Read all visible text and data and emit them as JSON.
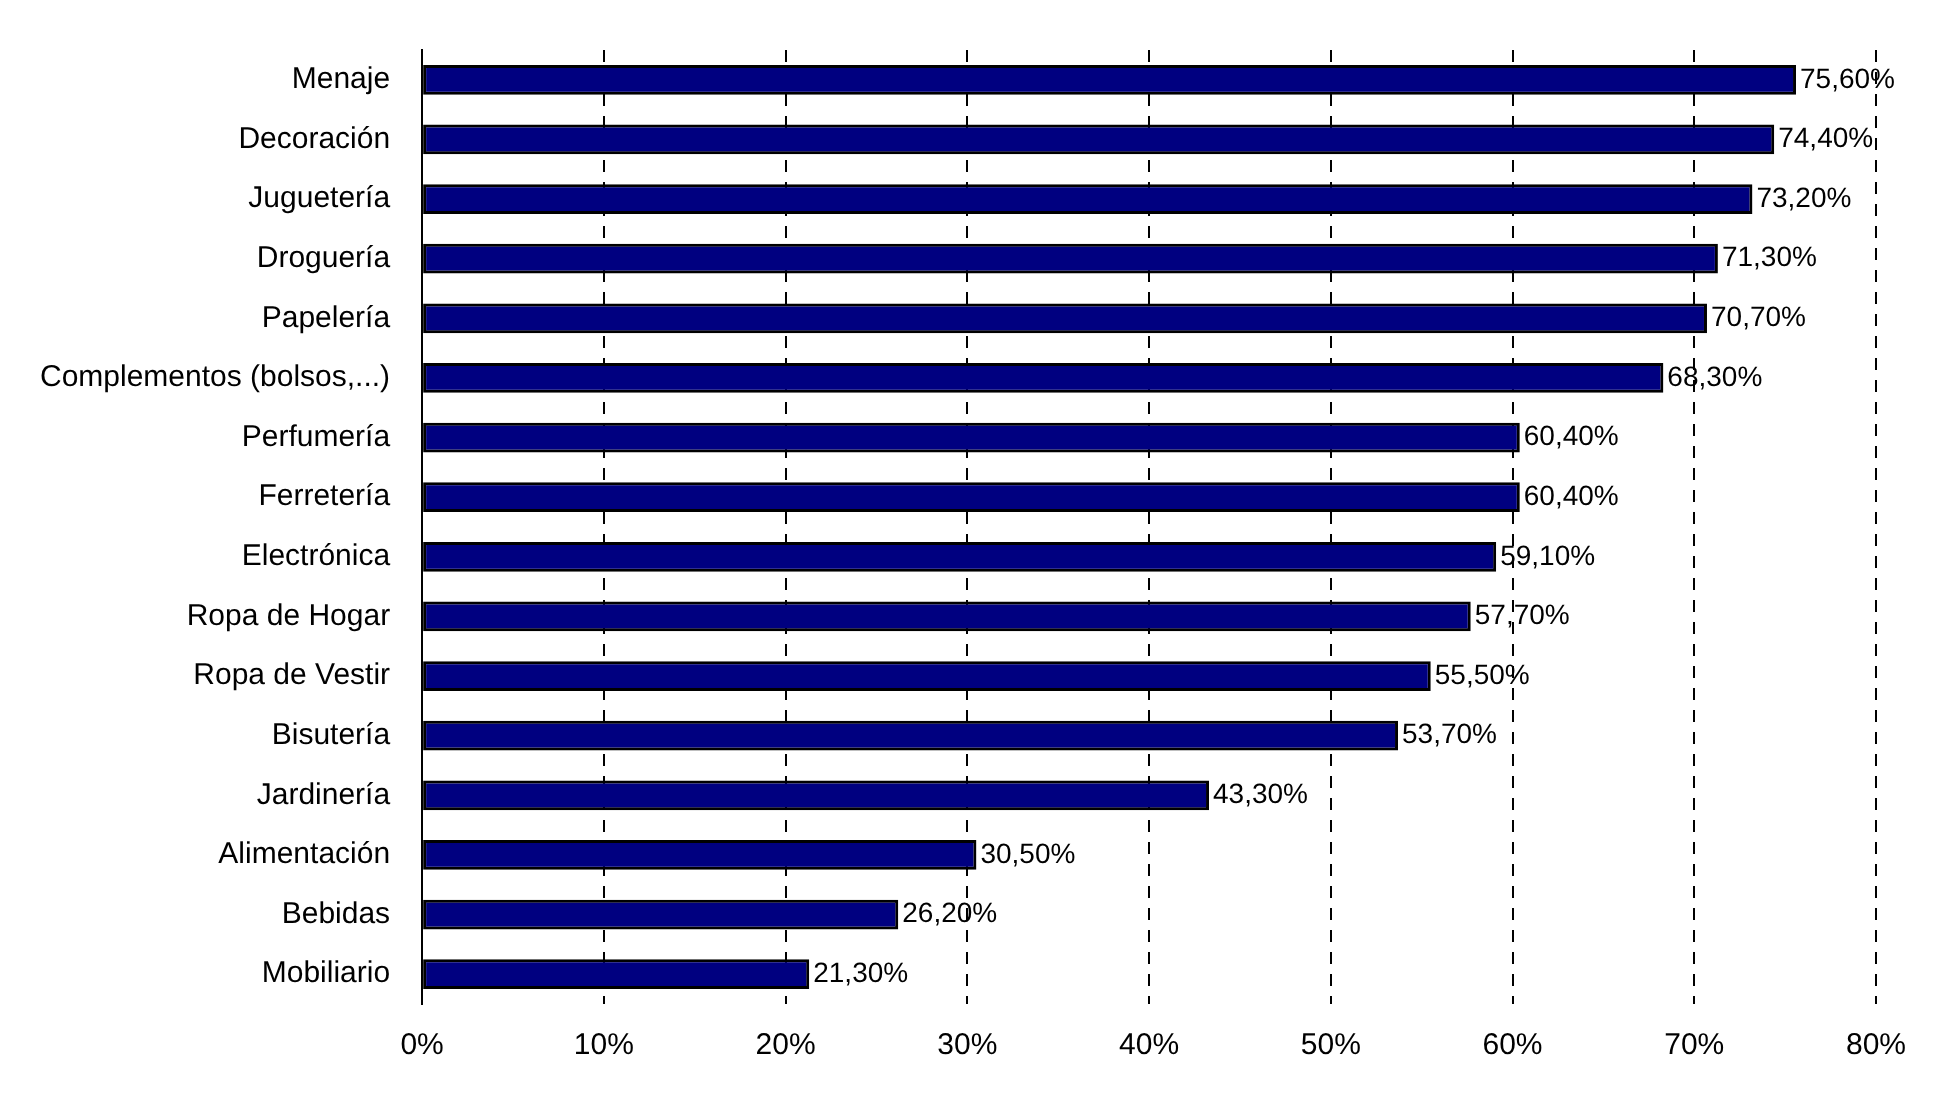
{
  "chart_data": {
    "type": "bar",
    "orientation": "horizontal",
    "categories": [
      "Menaje",
      "Decoración",
      "Juguetería",
      "Droguería",
      "Papelería",
      "Complementos (bolsos,...)",
      "Perfumería",
      "Ferretería",
      "Electrónica",
      "Ropa de Hogar",
      "Ropa de Vestir",
      "Bisutería",
      "Jardinería",
      "Alimentación",
      "Bebidas",
      "Mobiliario"
    ],
    "values": [
      75.6,
      74.4,
      73.2,
      71.3,
      70.7,
      68.3,
      60.4,
      60.4,
      59.1,
      57.7,
      55.5,
      53.7,
      43.3,
      30.5,
      26.2,
      21.3
    ],
    "value_labels": [
      "75,60%",
      "74,40%",
      "73,20%",
      "71,30%",
      "70,70%",
      "68,30%",
      "60,40%",
      "60,40%",
      "59,10%",
      "57,70%",
      "55,50%",
      "53,70%",
      "43,30%",
      "30,50%",
      "26,20%",
      "21,30%"
    ],
    "color": "#000080",
    "xlim": [
      0,
      80
    ],
    "xticks": [
      {
        "value": 0,
        "label": "0%"
      },
      {
        "value": 10,
        "label": "10%"
      },
      {
        "value": 20,
        "label": "20%"
      },
      {
        "value": 30,
        "label": "30%"
      },
      {
        "value": 40,
        "label": "40%"
      },
      {
        "value": 50,
        "label": "50%"
      },
      {
        "value": 60,
        "label": "60%"
      },
      {
        "value": 70,
        "label": "70%"
      },
      {
        "value": 80,
        "label": "80%"
      }
    ],
    "grid": "x",
    "legend": false
  }
}
